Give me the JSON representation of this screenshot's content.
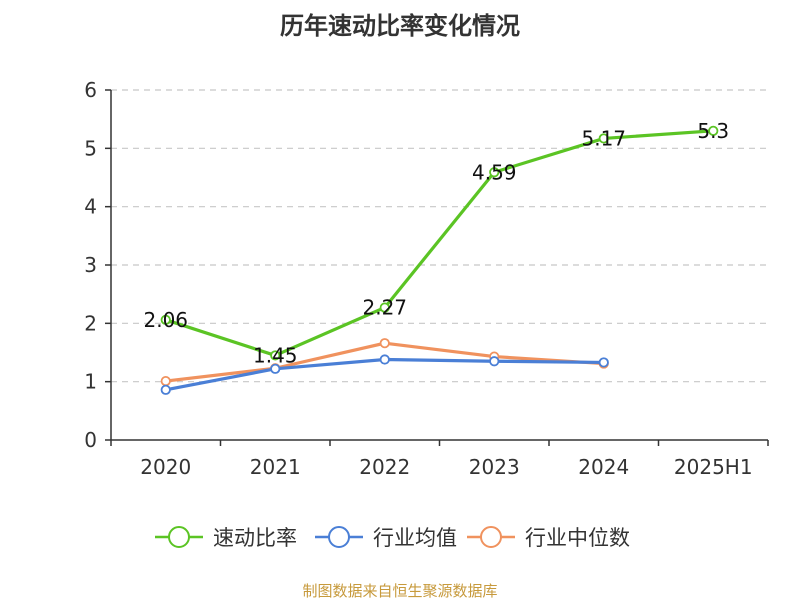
{
  "chart_data": {
    "type": "line",
    "title": "历年速动比率变化情况",
    "categories": [
      "2020",
      "2021",
      "2022",
      "2023",
      "2024",
      "2025H1"
    ],
    "ylim": [
      0,
      6
    ],
    "yticks": [
      0,
      1,
      2,
      3,
      4,
      5,
      6
    ],
    "grid": true,
    "legend_position": "bottom",
    "series": [
      {
        "name": "速动比率",
        "color": "#5bc424",
        "values": [
          2.06,
          1.45,
          2.27,
          4.59,
          5.17,
          5.3
        ],
        "labels": [
          "2.06",
          "1.45",
          "2.27",
          "4.59",
          "5.17",
          "5.3"
        ]
      },
      {
        "name": "行业均值",
        "color": "#4a7fd6",
        "values": [
          0.86,
          1.22,
          1.38,
          1.35,
          1.33,
          null
        ]
      },
      {
        "name": "行业中位数",
        "color": "#f0925e",
        "values": [
          1.01,
          1.23,
          1.66,
          1.43,
          1.31,
          null
        ]
      }
    ]
  },
  "source": "制图数据来自恒生聚源数据库"
}
